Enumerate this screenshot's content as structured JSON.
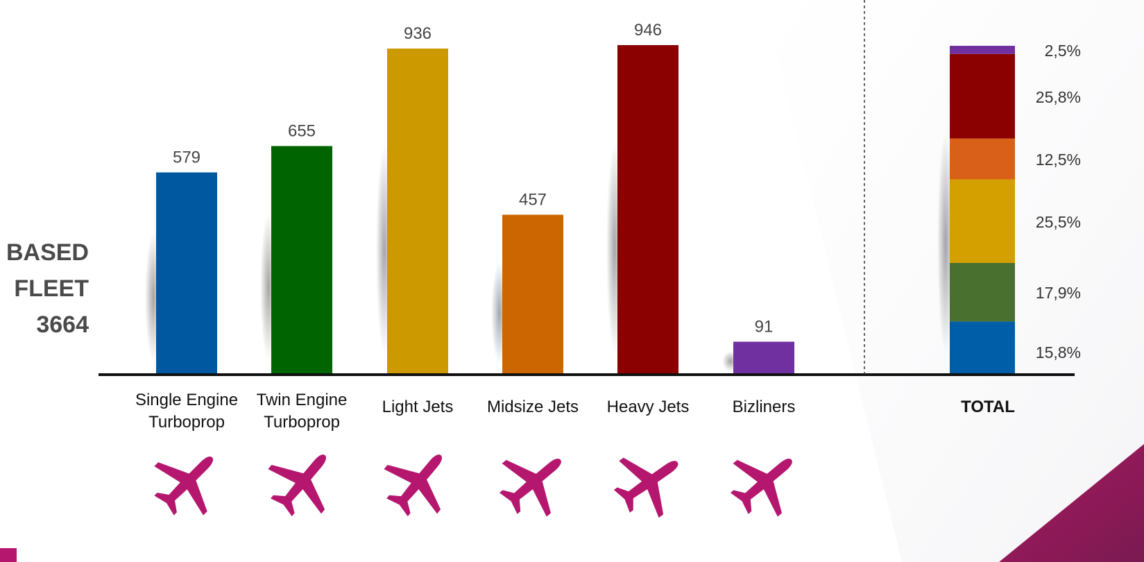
{
  "fleet_label": {
    "line1": "BASED",
    "line2": "FLEET",
    "line3": "3664"
  },
  "total_label": "TOTAL",
  "colors": {
    "accent": "#b5176f",
    "corner_dark": "#8a1650",
    "axis": "#111111"
  },
  "chart_data": [
    {
      "type": "bar",
      "categories": [
        [
          "Single Engine",
          "Turboprop"
        ],
        [
          "Twin Engine",
          "Turboprop"
        ],
        [
          "Light Jets"
        ],
        [
          "Midsize Jets"
        ],
        [
          "Heavy Jets"
        ],
        [
          "Bizliners"
        ]
      ],
      "values": [
        579,
        655,
        936,
        457,
        946,
        91
      ],
      "value_labels": [
        "579",
        "655",
        "936",
        "457",
        "946",
        "91"
      ],
      "colors": [
        "#0058a0",
        "#006400",
        "#cc9900",
        "#cc6600",
        "#8b0000",
        "#7030a0"
      ],
      "icons": [
        "single-engine-turboprop-icon",
        "twin-engine-turboprop-icon",
        "light-jet-icon",
        "midsize-jet-icon",
        "heavy-jet-icon",
        "bizliner-icon"
      ],
      "ylim": [
        0,
        1000
      ]
    },
    {
      "type": "bar",
      "stacked": true,
      "categories": [
        "TOTAL"
      ],
      "segments": [
        {
          "percent": 15.8,
          "label": "15,8%",
          "color": "#005ea8"
        },
        {
          "percent": 17.9,
          "label": "17,9%",
          "color": "#4a7030"
        },
        {
          "percent": 25.5,
          "label": "25,5%",
          "color": "#d4a000"
        },
        {
          "percent": 12.5,
          "label": "12,5%",
          "color": "#d86018"
        },
        {
          "percent": 25.8,
          "label": "25,8%",
          "color": "#8b0000"
        },
        {
          "percent": 2.5,
          "label": "2,5%",
          "color": "#7030a0"
        }
      ]
    }
  ]
}
